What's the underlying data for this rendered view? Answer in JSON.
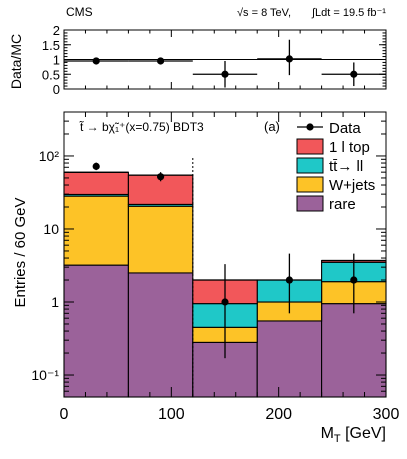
{
  "header": {
    "experiment": "CMS",
    "energy_label": "√s = 8 TeV,",
    "lumi_label": "∫Ldt = 19.5 fb⁻¹"
  },
  "chart_data": [
    {
      "type": "scatter",
      "panel": "ratio",
      "ylabel": "Data/MC",
      "xlim": [
        0,
        300
      ],
      "ylim": [
        0,
        2
      ],
      "yticks": [
        0,
        0.5,
        1,
        1.5,
        2
      ],
      "ytick_labels": [
        "0",
        "0.5",
        "1",
        "1.5",
        "2"
      ],
      "reference_line": 1,
      "points": [
        {
          "x": 30,
          "xerr": 30,
          "y": 0.95,
          "yerr_low": 0,
          "yerr_high": 0
        },
        {
          "x": 90,
          "xerr": 30,
          "y": 0.95,
          "yerr_low": 0,
          "yerr_high": 0
        },
        {
          "x": 150,
          "xerr": 30,
          "y": 0.5,
          "yerr_low": 0.45,
          "yerr_high": 0.45
        },
        {
          "x": 210,
          "xerr": 30,
          "y": 1.02,
          "yerr_low": 0.55,
          "yerr_high": 0.65
        },
        {
          "x": 270,
          "xerr": 30,
          "y": 0.5,
          "yerr_low": 0.4,
          "yerr_high": 0.4
        }
      ]
    },
    {
      "type": "bar",
      "stacked": true,
      "panel": "main",
      "title": "t̃ → bχ̃₁⁺(x=0.75) BDT3",
      "panel_label": "(a)",
      "xlabel": "M_T [GeV]",
      "ylabel": "Entries / 60 GeV",
      "log_y": true,
      "xlim": [
        0,
        300
      ],
      "ylim": [
        0.05,
        400
      ],
      "xticks": [
        0,
        100,
        200,
        300
      ],
      "ytick_labels": [
        "10⁻¹",
        "1",
        "10",
        "10²"
      ],
      "bin_edges": [
        0,
        60,
        120,
        180,
        240,
        300
      ],
      "cut_line_x": 120,
      "series": [
        {
          "name": "rare",
          "color": "#9b629a",
          "values": [
            3.2,
            2.5,
            0.28,
            0.55,
            0.95
          ]
        },
        {
          "name": "W+jets",
          "color": "#fdc327",
          "values": [
            25,
            18,
            0.17,
            0.45,
            0.95
          ]
        },
        {
          "name": "tt̄→ ll",
          "color": "#1fc8c8",
          "values": [
            1.5,
            1.2,
            0.5,
            1.0,
            1.6
          ]
        },
        {
          "name": "1 l top",
          "color": "#f2575a",
          "values": [
            30,
            33,
            1.05,
            0,
            0.2
          ]
        }
      ],
      "data": {
        "name": "Data",
        "points": [
          {
            "x": 30,
            "y": 72,
            "err_low": 8,
            "err_high": 9
          },
          {
            "x": 90,
            "y": 52,
            "err_low": 7,
            "err_high": 8
          },
          {
            "x": 150,
            "y": 1,
            "err_low": 0.83,
            "err_high": 2.3
          },
          {
            "x": 210,
            "y": 2,
            "err_low": 1.3,
            "err_high": 2.6
          },
          {
            "x": 270,
            "y": 2,
            "err_low": 1.3,
            "err_high": 2.6
          }
        ]
      }
    }
  ]
}
